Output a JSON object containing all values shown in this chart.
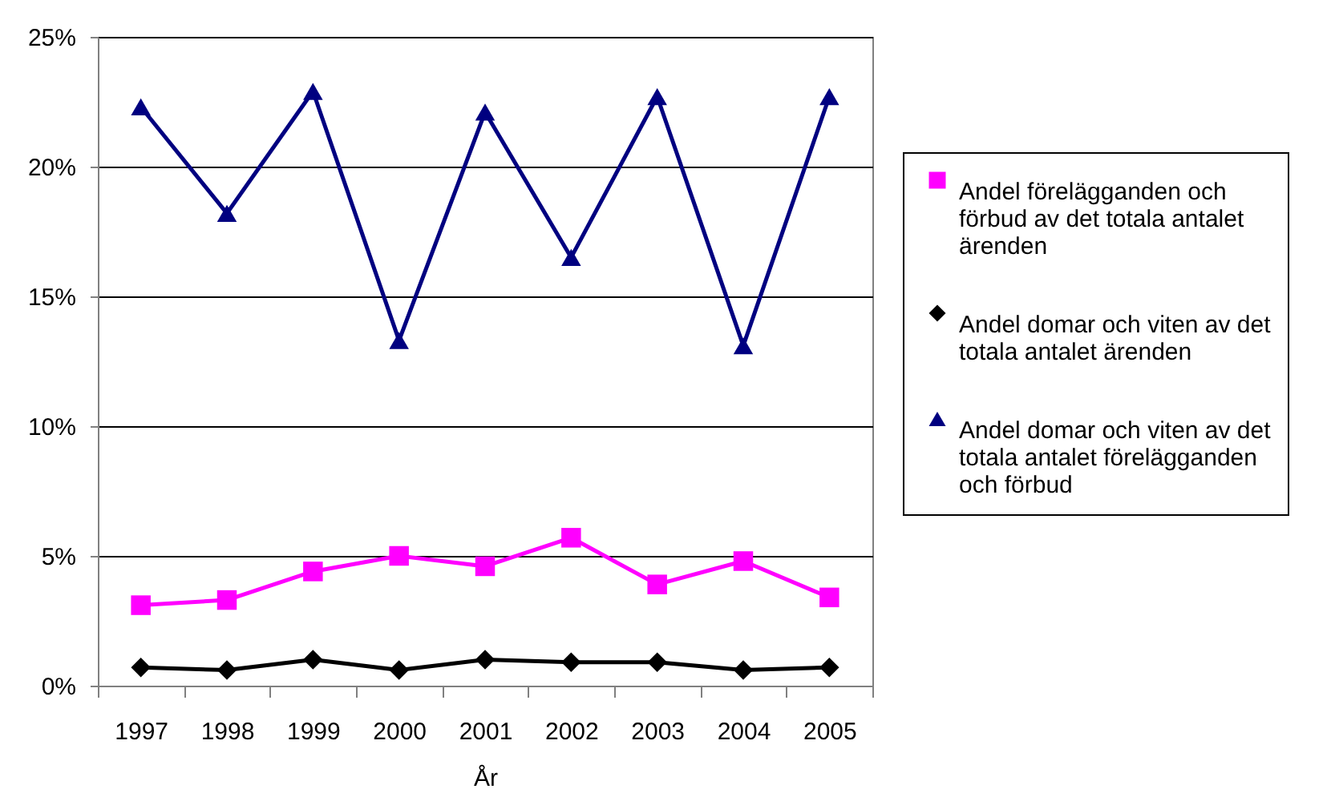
{
  "chart_data": {
    "type": "line",
    "xlabel": "År",
    "categories": [
      "1997",
      "1998",
      "1999",
      "2000",
      "2001",
      "2002",
      "2003",
      "2004",
      "2005"
    ],
    "series": [
      {
        "name": "Andel förelägganden och förbud av det totala antalet ärenden",
        "color": "#ff00ff",
        "marker": "square",
        "values": [
          3.1,
          3.3,
          4.4,
          5.0,
          4.6,
          5.7,
          3.9,
          4.8,
          3.4
        ]
      },
      {
        "name": "Andel domar och viten av det totala antalet ärenden",
        "color": "#000000",
        "marker": "diamond",
        "values": [
          0.7,
          0.6,
          1.0,
          0.6,
          1.0,
          0.9,
          0.9,
          0.6,
          0.7
        ]
      },
      {
        "name": "Andel domar och viten av det totala antalet förelägganden och förbud",
        "color": "#000080",
        "marker": "triangle",
        "values": [
          22.3,
          18.2,
          22.9,
          13.3,
          22.1,
          16.5,
          22.7,
          13.1,
          22.7
        ]
      }
    ],
    "ylim": [
      0,
      25
    ],
    "yticks": [
      {
        "value": 0,
        "label": "0%"
      },
      {
        "value": 5,
        "label": "5%"
      },
      {
        "value": 10,
        "label": "10%"
      },
      {
        "value": 15,
        "label": "15%"
      },
      {
        "value": 20,
        "label": "20%"
      },
      {
        "value": 25,
        "label": "25%"
      }
    ],
    "grid": "y",
    "legend": "right",
    "line_style": "solid"
  }
}
